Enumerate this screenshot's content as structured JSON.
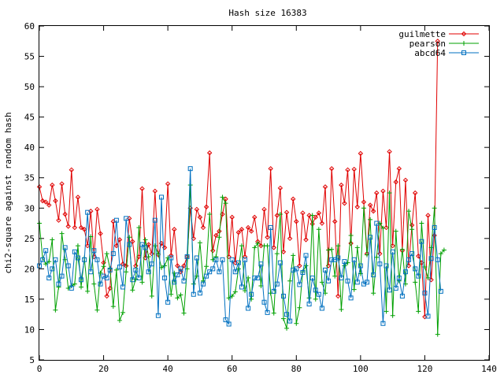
{
  "chart_data": {
    "type": "line",
    "title": "Hash size 16383",
    "xlabel": "",
    "ylabel": "chi2-square against random hash",
    "xlim": [
      0,
      140
    ],
    "ylim": [
      5,
      60
    ],
    "x_ticks": [
      0,
      20,
      40,
      60,
      80,
      100,
      120,
      140
    ],
    "y_ticks": [
      5,
      10,
      15,
      20,
      25,
      30,
      35,
      40,
      45,
      50,
      55,
      60
    ],
    "x_tick_labels": [
      "0",
      "20",
      "40",
      "60",
      "80",
      "100",
      "120",
      "140"
    ],
    "y_tick_labels": [
      "5",
      "10",
      "15",
      "20",
      "25",
      "30",
      "35",
      "40",
      "45",
      "50",
      "55",
      "60"
    ],
    "grid": false,
    "legend_position": "top-right",
    "series": [
      {
        "name": "guilmette",
        "color": "#e00000",
        "marker": "diamond",
        "values": [
          33.5,
          31.2,
          31,
          30.5,
          33.8,
          31.2,
          28,
          34,
          29,
          27,
          36.3,
          26.8,
          31.8,
          26.8,
          26.5,
          23.8,
          29.5,
          22,
          29.8,
          25.8,
          21,
          15.5,
          16.8,
          27.8,
          23.8,
          24.8,
          20.8,
          20.5,
          28.3,
          24.5,
          20.5,
          22,
          33.2,
          21.8,
          24,
          22.5,
          32.8,
          22.3,
          24.2,
          23.5,
          34,
          22.2,
          26.5,
          20.5,
          19.5,
          20.5,
          22,
          30,
          25,
          29.8,
          28.5,
          26.8,
          30.2,
          39.1,
          23,
          25.5,
          26.2,
          29,
          31.5,
          22,
          28.5,
          21,
          26,
          26.5,
          22,
          26.8,
          26.2,
          28.5,
          24.5,
          23.8,
          29.8,
          25.2,
          36.5,
          23.5,
          28.8,
          33.3,
          22.8,
          29.3,
          25,
          31.5,
          27.8,
          20.5,
          29.2,
          24.8,
          28.8,
          27.4,
          28.5,
          29.2,
          27.5,
          33.5,
          20.5,
          36.5,
          27.8,
          15.5,
          33.8,
          30.8,
          36.3,
          24.2,
          36.4,
          30.2,
          39,
          31,
          22.5,
          30.5,
          29.5,
          32.5,
          22.5,
          32.8,
          26.8,
          39.3,
          23.8,
          34.3,
          36.5,
          23,
          34.6,
          20.5,
          27.2,
          32.5,
          22.1,
          21,
          12.1,
          28.8,
          18.2,
          25.5,
          57.5
        ]
      },
      {
        "name": "pearson",
        "color": "#00a000",
        "marker": "plus",
        "values": [
          27.5,
          21.8,
          20.8,
          21.2,
          24.8,
          13.2,
          17,
          25.8,
          21.5,
          16.8,
          17.2,
          17.5,
          23.8,
          17,
          21.8,
          16.3,
          25.3,
          17.5,
          13.2,
          19.3,
          20.4,
          22.5,
          20,
          13.8,
          19.8,
          11.5,
          12.8,
          19.5,
          25.2,
          16.5,
          18.3,
          26.8,
          17.8,
          24.8,
          22,
          15.5,
          23.8,
          22.5,
          20.2,
          20.5,
          21.8,
          15.8,
          19.3,
          15.2,
          15.7,
          12.7,
          20,
          33.8,
          17.5,
          18.8,
          24.3,
          18,
          20.4,
          29,
          21.5,
          22,
          25.2,
          31.8,
          30.8,
          15.2,
          15.5,
          16.2,
          20,
          23.8,
          16.4,
          18.5,
          15,
          23.5,
          24.2,
          17.2,
          23.8,
          23.8,
          16,
          12.7,
          22.5,
          29,
          11.8,
          10.2,
          18,
          22.2,
          11,
          13.6,
          19.5,
          20.5,
          15.2,
          28.8,
          15,
          26.5,
          17.8,
          16,
          23.1,
          23.2,
          18.8,
          23.8,
          13.3,
          20.5,
          21,
          25.5,
          16.6,
          23.5,
          19.2,
          30,
          22.3,
          28.1,
          16,
          21.9,
          27.5,
          26.7,
          13,
          32.5,
          12.3,
          26.2,
          18,
          23.2,
          17.5,
          29.5,
          26.5,
          17.8,
          13,
          27.5,
          20.3,
          18.5,
          23.5,
          30,
          9.2,
          22.5,
          23.1
        ]
      },
      {
        "name": "abcd64",
        "color": "#0070c0",
        "marker": "square",
        "values": [
          20.5,
          21.5,
          23,
          18.5,
          20,
          21.5,
          17.5,
          18.8,
          23.5,
          20.5,
          16.8,
          22.8,
          21.8,
          18.2,
          21.5,
          29.3,
          19.5,
          23,
          21.5,
          17.5,
          18.8,
          18.5,
          19.8,
          22.5,
          28,
          20.3,
          17,
          28.3,
          24,
          18.2,
          19.8,
          18.5,
          24,
          23.5,
          19.5,
          20.8,
          28,
          12.3,
          31.8,
          18.5,
          14.5,
          21.8,
          17.8,
          19,
          20,
          18,
          22,
          36.5,
          15.8,
          21.8,
          16,
          17.5,
          18.8,
          19.5,
          20,
          21.5,
          19.5,
          21.5,
          11.6,
          10.9,
          21.5,
          19.5,
          21,
          17,
          21.5,
          13.5,
          15.8,
          18.5,
          18.5,
          20.8,
          14.5,
          12.8,
          26.8,
          16.3,
          17.5,
          21,
          15.5,
          12.5,
          11.4,
          19.8,
          20,
          17.4,
          19.4,
          22.2,
          14.2,
          18.5,
          16.5,
          15.8,
          13.5,
          19.8,
          18,
          21.5,
          21.5,
          21.8,
          18.5,
          21.2,
          18,
          15.2,
          21.5,
          17.8,
          20.5,
          17.5,
          17.8,
          25.2,
          19,
          27.5,
          20.8,
          11,
          20.5,
          16.5,
          22.8,
          16.8,
          18.5,
          15.5,
          19.5,
          21.5,
          22.5,
          20,
          18.8,
          24.5,
          16,
          12.2,
          21.7,
          26.8,
          21.5,
          16.3
        ]
      }
    ]
  }
}
